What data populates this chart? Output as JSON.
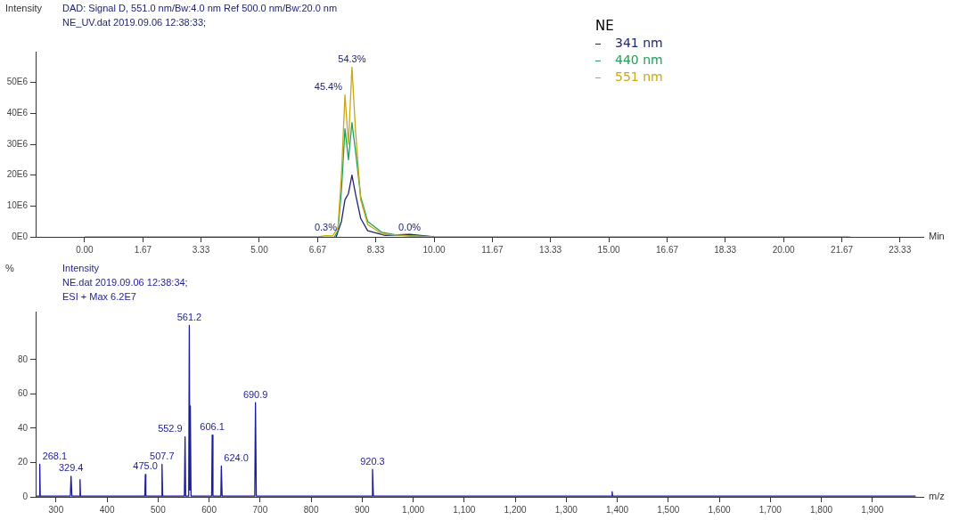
{
  "chart_data": [
    {
      "type": "line",
      "ylabel": "Intensity",
      "xlabel": "Min",
      "legend_title": "NE",
      "legend": "top right",
      "marker": "none",
      "line_style": "solid",
      "grid": false,
      "annotations": [
        "DAD: Signal D, 551.0 nm/Bw:4.0 nm Ref 500.0 nm/Bw:20.0 nm",
        "NE_UV.dat 2019.09.06 12:38:33;",
        {
          "text": "45.4%",
          "x": 7.45,
          "y": 46000000
        },
        {
          "text": "54.3%",
          "x": 7.65,
          "y": 55000000
        },
        {
          "text": "0.3%",
          "x": 6.9,
          "y": 400000
        },
        {
          "text": "0.0%",
          "x": 9.3,
          "y": 300000
        }
      ],
      "xlim": [
        -1.4,
        24
      ],
      "xticks": [
        {
          "value": 0,
          "label": "0.00"
        },
        {
          "value": 1.67,
          "label": "1.67"
        },
        {
          "value": 3.33,
          "label": "3.33"
        },
        {
          "value": 5,
          "label": "5.00"
        },
        {
          "value": 6.67,
          "label": "6.67"
        },
        {
          "value": 8.33,
          "label": "8.33"
        },
        {
          "value": 10,
          "label": "10.00"
        },
        {
          "value": 11.67,
          "label": "11.67"
        },
        {
          "value": 13.33,
          "label": "13.33"
        },
        {
          "value": 15,
          "label": "15.00"
        },
        {
          "value": 16.67,
          "label": "16.67"
        },
        {
          "value": 18.33,
          "label": "18.33"
        },
        {
          "value": 20,
          "label": "20.00"
        },
        {
          "value": 21.67,
          "label": "21.67"
        },
        {
          "value": 23.33,
          "label": "23.33"
        }
      ],
      "ylim": [
        0,
        60000000
      ],
      "yticks": [
        {
          "value": 0,
          "label": "0E0"
        },
        {
          "value": 10000000,
          "label": "10E6"
        },
        {
          "value": 20000000,
          "label": "20E6"
        },
        {
          "value": 30000000,
          "label": "30E6"
        },
        {
          "value": 40000000,
          "label": "40E6"
        },
        {
          "value": 50000000,
          "label": "50E6"
        }
      ],
      "series": [
        {
          "name": "341 nm",
          "color": "#1f2470",
          "x": [
            7.2,
            7.35,
            7.45,
            7.55,
            7.65,
            7.75,
            7.9,
            8.1,
            8.6,
            9.3,
            10
          ],
          "values": [
            0,
            5000000,
            12000000,
            14000000,
            20000000,
            14000000,
            6000000,
            2000000,
            500000,
            800000,
            0
          ]
        },
        {
          "name": "440 nm",
          "color": "#1fa05a",
          "x": [
            7.15,
            7.25,
            7.35,
            7.45,
            7.55,
            7.65,
            7.75,
            7.9,
            8.1,
            8.5,
            9,
            10
          ],
          "values": [
            0,
            2000000,
            15000000,
            35000000,
            25000000,
            37000000,
            28000000,
            13000000,
            5000000,
            1500000,
            500000,
            0
          ]
        },
        {
          "name": "551 nm",
          "color": "#c8a818",
          "x": [
            0,
            6.7,
            6.9,
            7.1,
            7.25,
            7.35,
            7.45,
            7.55,
            7.65,
            7.75,
            7.9,
            8.1,
            8.5,
            9.3,
            10,
            21.9
          ],
          "values": [
            0,
            0,
            400000,
            300000,
            3000000,
            20000000,
            46000000,
            30000000,
            55000000,
            35000000,
            12000000,
            4000000,
            1000000,
            300000,
            0,
            0
          ]
        }
      ]
    },
    {
      "type": "line",
      "ylabel": "%",
      "xlabel": "m/z",
      "marker": "none",
      "line_style": "solid",
      "grid": false,
      "annotations": [
        "Intensity",
        "NE.dat 2019.09.06 12:38:34;",
        "ESI + Max 6.2E7",
        {
          "text": "268.1",
          "x": 268.1,
          "y": 19
        },
        {
          "text": "329.4",
          "x": 329.4,
          "y": 12
        },
        {
          "text": "475.0",
          "x": 475,
          "y": 13
        },
        {
          "text": "507.7",
          "x": 507.7,
          "y": 19
        },
        {
          "text": "552.9",
          "x": 552.9,
          "y": 35
        },
        {
          "text": "561.2",
          "x": 561.2,
          "y": 100
        },
        {
          "text": "606.1",
          "x": 606.1,
          "y": 36
        },
        {
          "text": "624.0",
          "x": 624,
          "y": 18
        },
        {
          "text": "690.9",
          "x": 690.9,
          "y": 55
        },
        {
          "text": "920.3",
          "x": 920.3,
          "y": 16
        }
      ],
      "xlim": [
        260,
        2000
      ],
      "xticks": [
        300,
        400,
        500,
        600,
        700,
        800,
        900,
        {
          "value": 1000,
          "label": "1,000"
        },
        {
          "value": 1100,
          "label": "1,100"
        },
        {
          "value": 1200,
          "label": "1,200"
        },
        {
          "value": 1300,
          "label": "1,300"
        },
        {
          "value": 1400,
          "label": "1,400"
        },
        {
          "value": 1500,
          "label": "1,500"
        },
        {
          "value": 1600,
          "label": "1,600"
        },
        {
          "value": 1700,
          "label": "1,700"
        },
        {
          "value": 1800,
          "label": "1,800"
        },
        {
          "value": 1900,
          "label": "1,900"
        }
      ],
      "ylim": [
        0,
        108
      ],
      "yticks": [
        0,
        20,
        40,
        60,
        80
      ],
      "series": [
        {
          "color": "#1c1c9c",
          "x": [
            262,
            267,
            268.1,
            269,
            328,
            329.4,
            331,
            346,
            347,
            348,
            474,
            475,
            476,
            506.5,
            507.7,
            509,
            551.5,
            552.9,
            554,
            560,
            561.2,
            562.3,
            563.2,
            564.5,
            605,
            606.1,
            607.5,
            623,
            624,
            625.5,
            689.5,
            690.9,
            692.5,
            919,
            920.3,
            922,
            1389,
            1390,
            1391,
            1985
          ],
          "values": [
            0.5,
            0.5,
            19,
            0.5,
            0.5,
            12,
            0.5,
            0.5,
            10,
            0.5,
            0.5,
            13,
            0.5,
            0.5,
            19,
            0.5,
            0.5,
            35,
            0.5,
            0.5,
            100,
            4,
            53,
            0.5,
            0.5,
            36,
            0.5,
            0.5,
            18,
            0.5,
            0.5,
            55,
            0.5,
            0.5,
            16,
            0.5,
            0.5,
            3,
            0.5,
            0.5
          ]
        }
      ]
    }
  ]
}
